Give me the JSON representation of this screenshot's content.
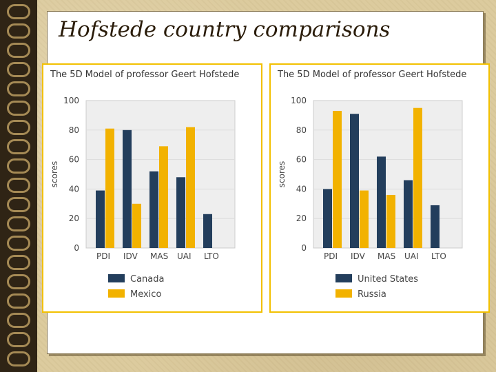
{
  "slide": {
    "title": "Hofstede country comparisons"
  },
  "colors": {
    "series_a": "#233e5c",
    "series_b": "#f2b200",
    "panel_border": "#f2c000",
    "plot_bg": "#eeeeee"
  },
  "chart_data": [
    {
      "type": "bar",
      "title": "The 5D Model of professor Geert Hofstede",
      "ylabel": "scores",
      "ylim": [
        0,
        100
      ],
      "yticks": [
        0,
        20,
        40,
        60,
        80,
        100
      ],
      "categories": [
        "PDI",
        "IDV",
        "MAS",
        "UAI",
        "LTO"
      ],
      "series": [
        {
          "name": "Canada",
          "color": "#233e5c",
          "values": [
            39,
            80,
            52,
            48,
            23
          ]
        },
        {
          "name": "Mexico",
          "color": "#f2b200",
          "values": [
            81,
            30,
            69,
            82,
            null
          ]
        }
      ],
      "grid": true,
      "legend_position": "bottom"
    },
    {
      "type": "bar",
      "title": "The 5D Model of professor Geert Hofstede",
      "ylabel": "scores",
      "ylim": [
        0,
        100
      ],
      "yticks": [
        0,
        20,
        40,
        60,
        80,
        100
      ],
      "categories": [
        "PDI",
        "IDV",
        "MAS",
        "UAI",
        "LTO"
      ],
      "series": [
        {
          "name": "United States",
          "color": "#233e5c",
          "values": [
            40,
            91,
            62,
            46,
            29
          ]
        },
        {
          "name": "Russia",
          "color": "#f2b200",
          "values": [
            93,
            39,
            36,
            95,
            null
          ]
        }
      ],
      "grid": true,
      "legend_position": "bottom"
    }
  ]
}
